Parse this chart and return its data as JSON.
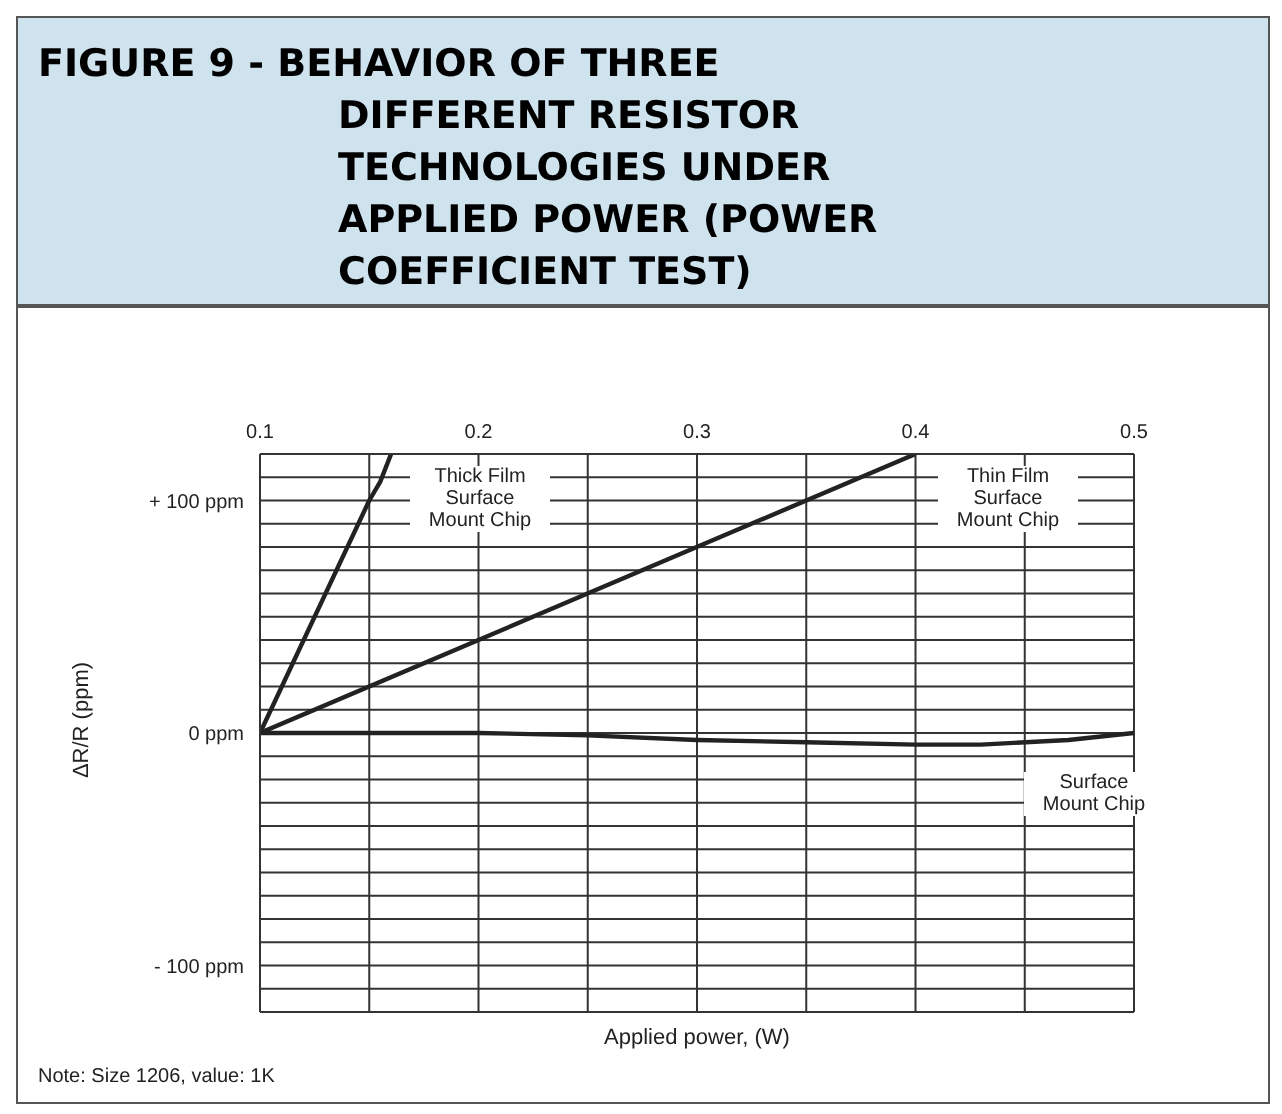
{
  "chart_data": {
    "type": "line",
    "title": "FIGURE 9 - BEHAVIOR OF THREE DIFFERENT RESISTOR TECHNOLOGIES UNDER APPLIED POWER (POWER COEFFICIENT TEST)",
    "xlabel": "Applied power, (W)",
    "ylabel": "ΔR/R (ppm)",
    "annotations": [
      "Note: Size 1206, value: 1K"
    ],
    "series": [
      {
        "name": "Thick Film Surface Mount Chip",
        "color": "#222222",
        "x": [
          0.1,
          0.115,
          0.15,
          0.155,
          0.16
        ],
        "values": [
          0,
          30,
          100,
          108,
          120
        ]
      },
      {
        "name": "Thin Film Surface Mount Chip",
        "color": "#222222",
        "x": [
          0.1,
          0.4
        ],
        "values": [
          0,
          120
        ]
      },
      {
        "name": "Surface Mount Chip",
        "color": "#222222",
        "x": [
          0.1,
          0.2,
          0.25,
          0.3,
          0.35,
          0.4,
          0.43,
          0.47,
          0.5
        ],
        "values": [
          0,
          0,
          -1,
          -3,
          -4,
          -5,
          -5,
          -3,
          0
        ]
      }
    ],
    "xlim": [
      0.1,
      0.5
    ],
    "xticks": [
      0.1,
      {
        "value": 0.15,
        "label": null
      },
      0.2,
      {
        "value": 0.25,
        "label": null
      },
      0.3,
      {
        "value": 0.35,
        "label": null
      },
      0.4,
      {
        "value": 0.45,
        "label": null
      },
      0.5
    ],
    "ylim": [
      -120,
      120
    ],
    "yticks": [
      {
        "value": -120,
        "label": null
      },
      {
        "value": -110,
        "label": null
      },
      {
        "value": -100,
        "label": "- 100 ppm"
      },
      {
        "value": -90,
        "label": null
      },
      {
        "value": -80,
        "label": null
      },
      {
        "value": -70,
        "label": null
      },
      {
        "value": -60,
        "label": null
      },
      {
        "value": -50,
        "label": null
      },
      {
        "value": -40,
        "label": null
      },
      {
        "value": -30,
        "label": null
      },
      {
        "value": -20,
        "label": null
      },
      {
        "value": -10,
        "label": null
      },
      {
        "value": 0,
        "label": "0 ppm"
      },
      {
        "value": 10,
        "label": null
      },
      {
        "value": 20,
        "label": null
      },
      {
        "value": 30,
        "label": null
      },
      {
        "value": 40,
        "label": null
      },
      {
        "value": 50,
        "label": null
      },
      {
        "value": 60,
        "label": null
      },
      {
        "value": 70,
        "label": null
      },
      {
        "value": 80,
        "label": null
      },
      {
        "value": 90,
        "label": null
      },
      {
        "value": 100,
        "label": "+ 100 ppm"
      },
      {
        "value": 110,
        "label": null
      },
      {
        "value": 120,
        "label": null
      }
    ],
    "grid": true,
    "legend": false,
    "marker": "none",
    "line_style": "solid"
  }
}
